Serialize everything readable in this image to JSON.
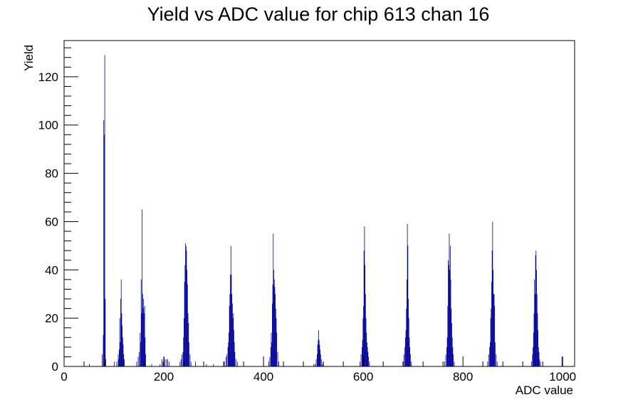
{
  "chart_data": {
    "type": "bar",
    "title": "Yield vs ADC value for chip 613 chan 16",
    "xlabel": "ADC value",
    "ylabel": "Yield",
    "xlim": [
      0,
      1024
    ],
    "ylim": [
      0,
      135
    ],
    "x_ticks": [
      0,
      200,
      400,
      600,
      800,
      1000
    ],
    "y_ticks": [
      0,
      20,
      40,
      60,
      80,
      100,
      120
    ],
    "grid": false,
    "series": [
      {
        "color": "#000099",
        "bins": [
          [
            50,
            1
          ],
          [
            76,
            5
          ],
          [
            78,
            13
          ],
          [
            79,
            102
          ],
          [
            80,
            96
          ],
          [
            81,
            129
          ],
          [
            82,
            28
          ],
          [
            83,
            3
          ],
          [
            100,
            2
          ],
          [
            105,
            2
          ],
          [
            108,
            5
          ],
          [
            109,
            3
          ],
          [
            110,
            7
          ],
          [
            111,
            20
          ],
          [
            112,
            10
          ],
          [
            113,
            28
          ],
          [
            114,
            36
          ],
          [
            115,
            22
          ],
          [
            116,
            17
          ],
          [
            117,
            12
          ],
          [
            118,
            9
          ],
          [
            119,
            5
          ],
          [
            120,
            3
          ],
          [
            145,
            2
          ],
          [
            148,
            4
          ],
          [
            150,
            6
          ],
          [
            152,
            14
          ],
          [
            153,
            10
          ],
          [
            154,
            36
          ],
          [
            155,
            22
          ],
          [
            156,
            65
          ],
          [
            157,
            30
          ],
          [
            158,
            24
          ],
          [
            159,
            28
          ],
          [
            160,
            22
          ],
          [
            161,
            25
          ],
          [
            162,
            12
          ],
          [
            163,
            5
          ],
          [
            175,
            1
          ],
          [
            192,
            1
          ],
          [
            196,
            3
          ],
          [
            198,
            2
          ],
          [
            200,
            4
          ],
          [
            202,
            3
          ],
          [
            205,
            3
          ],
          [
            207,
            3
          ],
          [
            210,
            2
          ],
          [
            232,
            2
          ],
          [
            234,
            3
          ],
          [
            236,
            5
          ],
          [
            238,
            6
          ],
          [
            239,
            12
          ],
          [
            240,
            20
          ],
          [
            241,
            35
          ],
          [
            242,
            42
          ],
          [
            243,
            51
          ],
          [
            244,
            50
          ],
          [
            245,
            48
          ],
          [
            246,
            40
          ],
          [
            247,
            34
          ],
          [
            248,
            22
          ],
          [
            249,
            18
          ],
          [
            250,
            10
          ],
          [
            252,
            5
          ],
          [
            254,
            2
          ],
          [
            263,
            2
          ],
          [
            285,
            1
          ],
          [
            299,
            1
          ],
          [
            321,
            2
          ],
          [
            324,
            4
          ],
          [
            326,
            5
          ],
          [
            328,
            8
          ],
          [
            329,
            10
          ],
          [
            330,
            14
          ],
          [
            331,
            25
          ],
          [
            332,
            30
          ],
          [
            333,
            38
          ],
          [
            334,
            50
          ],
          [
            335,
            38
          ],
          [
            336,
            30
          ],
          [
            337,
            26
          ],
          [
            338,
            20
          ],
          [
            339,
            22
          ],
          [
            340,
            15
          ],
          [
            341,
            10
          ],
          [
            342,
            6
          ],
          [
            344,
            3
          ],
          [
            347,
            2
          ],
          [
            410,
            2
          ],
          [
            412,
            4
          ],
          [
            414,
            8
          ],
          [
            415,
            14
          ],
          [
            416,
            10
          ],
          [
            417,
            26
          ],
          [
            418,
            34
          ],
          [
            419,
            55
          ],
          [
            420,
            40
          ],
          [
            421,
            36
          ],
          [
            422,
            33
          ],
          [
            423,
            30
          ],
          [
            424,
            24
          ],
          [
            425,
            20
          ],
          [
            426,
            14
          ],
          [
            428,
            6
          ],
          [
            430,
            2
          ],
          [
            500,
            1
          ],
          [
            503,
            1
          ],
          [
            505,
            3
          ],
          [
            507,
            5
          ],
          [
            508,
            9
          ],
          [
            509,
            11
          ],
          [
            510,
            15
          ],
          [
            511,
            11
          ],
          [
            512,
            9
          ],
          [
            513,
            7
          ],
          [
            514,
            5
          ],
          [
            516,
            3
          ],
          [
            518,
            1
          ],
          [
            593,
            2
          ],
          [
            595,
            5
          ],
          [
            597,
            8
          ],
          [
            598,
            11
          ],
          [
            599,
            20
          ],
          [
            600,
            25
          ],
          [
            601,
            48
          ],
          [
            602,
            58
          ],
          [
            603,
            42
          ],
          [
            604,
            30
          ],
          [
            605,
            20
          ],
          [
            606,
            14
          ],
          [
            607,
            10
          ],
          [
            608,
            8
          ],
          [
            609,
            6
          ],
          [
            610,
            4
          ],
          [
            612,
            2
          ],
          [
            679,
            2
          ],
          [
            681,
            5
          ],
          [
            683,
            8
          ],
          [
            684,
            12
          ],
          [
            685,
            15
          ],
          [
            686,
            24
          ],
          [
            687,
            36
          ],
          [
            688,
            59
          ],
          [
            689,
            50
          ],
          [
            690,
            28
          ],
          [
            691,
            20
          ],
          [
            692,
            12
          ],
          [
            693,
            8
          ],
          [
            694,
            5
          ],
          [
            696,
            2
          ],
          [
            763,
            2
          ],
          [
            765,
            5
          ],
          [
            767,
            8
          ],
          [
            768,
            12
          ],
          [
            769,
            25
          ],
          [
            770,
            44
          ],
          [
            771,
            42
          ],
          [
            772,
            55
          ],
          [
            773,
            40
          ],
          [
            774,
            50
          ],
          [
            775,
            36
          ],
          [
            776,
            24
          ],
          [
            777,
            18
          ],
          [
            778,
            12
          ],
          [
            779,
            8
          ],
          [
            780,
            5
          ],
          [
            782,
            2
          ],
          [
            849,
            2
          ],
          [
            851,
            5
          ],
          [
            853,
            8
          ],
          [
            854,
            10
          ],
          [
            855,
            20
          ],
          [
            856,
            24
          ],
          [
            857,
            35
          ],
          [
            858,
            48
          ],
          [
            859,
            60
          ],
          [
            860,
            40
          ],
          [
            861,
            30
          ],
          [
            862,
            30
          ],
          [
            863,
            25
          ],
          [
            864,
            10
          ],
          [
            866,
            5
          ],
          [
            868,
            2
          ],
          [
            937,
            2
          ],
          [
            939,
            5
          ],
          [
            940,
            8
          ],
          [
            941,
            14
          ],
          [
            942,
            22
          ],
          [
            943,
            36
          ],
          [
            944,
            30
          ],
          [
            945,
            46
          ],
          [
            946,
            48
          ],
          [
            947,
            40
          ],
          [
            948,
            30
          ],
          [
            949,
            22
          ],
          [
            950,
            15
          ],
          [
            951,
            8
          ],
          [
            952,
            6
          ],
          [
            953,
            3
          ],
          [
            955,
            2
          ],
          [
            998,
            4
          ]
        ]
      }
    ]
  }
}
